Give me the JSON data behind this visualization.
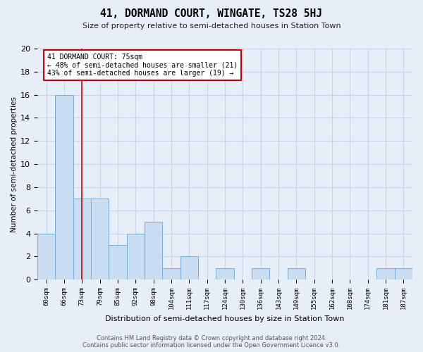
{
  "title": "41, DORMAND COURT, WINGATE, TS28 5HJ",
  "subtitle": "Size of property relative to semi-detached houses in Station Town",
  "xlabel": "Distribution of semi-detached houses by size in Station Town",
  "ylabel": "Number of semi-detached properties",
  "categories": [
    "60sqm",
    "66sqm",
    "73sqm",
    "79sqm",
    "85sqm",
    "92sqm",
    "98sqm",
    "104sqm",
    "111sqm",
    "117sqm",
    "124sqm",
    "130sqm",
    "136sqm",
    "143sqm",
    "149sqm",
    "155sqm",
    "162sqm",
    "168sqm",
    "174sqm",
    "181sqm",
    "187sqm"
  ],
  "values": [
    4,
    16,
    7,
    7,
    3,
    4,
    5,
    1,
    2,
    0,
    1,
    0,
    1,
    0,
    1,
    0,
    0,
    0,
    0,
    1,
    1
  ],
  "bar_color": "#c9ddf2",
  "bar_edge_color": "#7badd6",
  "highlight_bar_index": 2,
  "highlight_line_color": "#cc0000",
  "annotation_line1": "41 DORMAND COURT: 75sqm",
  "annotation_line2": "← 48% of semi-detached houses are smaller (21)",
  "annotation_line3": "43% of semi-detached houses are larger (19) →",
  "annotation_box_color": "#ffffff",
  "annotation_box_edge": "#cc0000",
  "ylim": [
    0,
    20
  ],
  "yticks": [
    0,
    2,
    4,
    6,
    8,
    10,
    12,
    14,
    16,
    18,
    20
  ],
  "grid_color": "#c8d4e8",
  "bg_color": "#e8eef8",
  "footer": "Contains HM Land Registry data © Crown copyright and database right 2024.\nContains public sector information licensed under the Open Government Licence v3.0."
}
